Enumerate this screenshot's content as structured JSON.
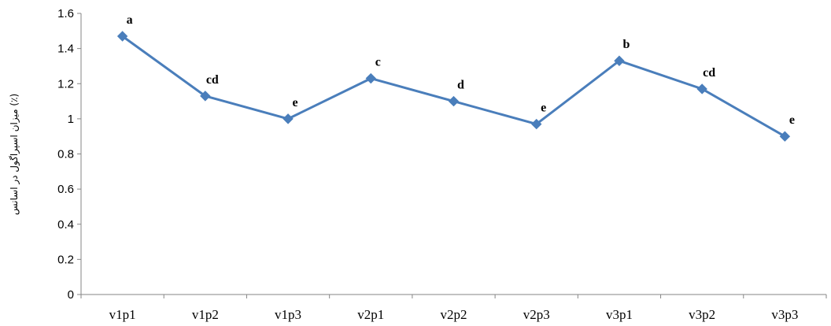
{
  "chart_data": {
    "type": "line",
    "title": "",
    "xlabel": "",
    "ylabel": "میزان اسپراگول در اسانس (٪)",
    "categories": [
      "v1p1",
      "v1p2",
      "v1p3",
      "v2p1",
      "v2p2",
      "v2p3",
      "v3p1",
      "v3p2",
      "v3p3"
    ],
    "series": [
      {
        "values": [
          1.47,
          1.13,
          1.0,
          1.23,
          1.1,
          0.97,
          1.33,
          1.17,
          0.9
        ],
        "point_labels": [
          "a",
          "cd",
          "e",
          "c",
          "d",
          "e",
          "b",
          "cd",
          "e"
        ],
        "color": "#4a7ebb"
      }
    ],
    "ylim": [
      0,
      1.6
    ],
    "yticks": [
      "0",
      "0.2",
      "0.4",
      "0.6",
      "0.8",
      "1",
      "1.2",
      "1.4",
      "1.6"
    ],
    "grid": false,
    "legend": "none",
    "axis_color": "#868686"
  }
}
